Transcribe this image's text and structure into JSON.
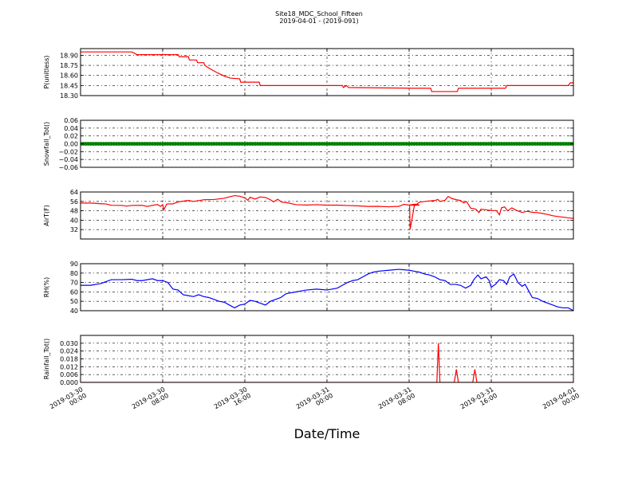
{
  "chart_data": {
    "type": "line",
    "title": "Site18_MDC_School_Fifteen",
    "subtitle": "2019-04-01 - (2019-091)",
    "xlabel": "Date/Time",
    "x_range": [
      "2019-03-30 00:00",
      "2019-04-01 00:00"
    ],
    "x_ticks": [
      {
        "t": 0,
        "line1": "2019-03-30",
        "line2": "00:00"
      },
      {
        "t": 8,
        "line1": "2019-03-30",
        "line2": "08:00"
      },
      {
        "t": 16,
        "line1": "2019-03-30",
        "line2": "16:00"
      },
      {
        "t": 24,
        "line1": "2019-03-31",
        "line2": "00:00"
      },
      {
        "t": 32,
        "line1": "2019-03-31",
        "line2": "08:00"
      },
      {
        "t": 40,
        "line1": "2019-03-31",
        "line2": "16:00"
      },
      {
        "t": 48,
        "line1": "2019-04-01",
        "line2": "00:00"
      }
    ],
    "grid": true,
    "panels": [
      {
        "ylabel": "P(unitless)",
        "ylim": [
          18.3,
          19.0
        ],
        "yticks": [
          "18.30",
          "18.45",
          "18.60",
          "18.75",
          "18.90"
        ],
        "ytick_values": [
          18.3,
          18.45,
          18.6,
          18.75,
          18.9
        ],
        "color": "#ff0000",
        "style": "line",
        "series": [
          [
            0,
            18.95
          ],
          [
            5,
            18.95
          ],
          [
            5.5,
            18.91
          ],
          [
            9.5,
            18.91
          ],
          [
            9.6,
            18.88
          ],
          [
            10.5,
            18.88
          ],
          [
            10.6,
            18.83
          ],
          [
            11.3,
            18.83
          ],
          [
            11.4,
            18.79
          ],
          [
            12,
            18.79
          ],
          [
            12.1,
            18.75
          ],
          [
            12.6,
            18.7
          ],
          [
            13.2,
            18.65
          ],
          [
            13.6,
            18.62
          ],
          [
            14,
            18.59
          ],
          [
            14.6,
            18.56
          ],
          [
            15.5,
            18.55
          ],
          [
            15.6,
            18.5
          ],
          [
            17.4,
            18.5
          ],
          [
            17.5,
            18.45
          ],
          [
            25,
            18.45
          ],
          [
            25.5,
            18.45
          ],
          [
            25.6,
            18.42
          ],
          [
            25.9,
            18.45
          ],
          [
            26.1,
            18.42
          ],
          [
            32.5,
            18.41
          ],
          [
            34.1,
            18.41
          ],
          [
            34.2,
            18.36
          ],
          [
            36.7,
            18.36
          ],
          [
            36.8,
            18.41
          ],
          [
            41.4,
            18.41
          ],
          [
            41.5,
            18.45
          ],
          [
            47.5,
            18.45
          ],
          [
            47.7,
            18.49
          ],
          [
            48,
            18.49
          ]
        ]
      },
      {
        "ylabel": "Snowfall_Tot()",
        "ylim": [
          -0.06,
          0.06
        ],
        "yticks": [
          "−0.06",
          "−0.04",
          "−0.02",
          "0.00",
          "0.02",
          "0.04",
          "0.06"
        ],
        "ytick_values": [
          -0.06,
          -0.04,
          -0.02,
          0.0,
          0.02,
          0.04,
          0.06
        ],
        "color": "#007f00",
        "style": "markers",
        "series": [
          [
            0,
            0
          ],
          [
            48,
            0
          ]
        ]
      },
      {
        "ylabel": "AirT(F)",
        "ylim": [
          24,
          64
        ],
        "yticks": [
          "32",
          "40",
          "48",
          "56",
          "64"
        ],
        "ytick_values": [
          32,
          40,
          48,
          56,
          64
        ],
        "color": "#ff0000",
        "style": "line",
        "series": [
          [
            0,
            54.6
          ],
          [
            1,
            54.6
          ],
          [
            2,
            54.0
          ],
          [
            2.5,
            53.8
          ],
          [
            3,
            52.7
          ],
          [
            4,
            52.6
          ],
          [
            4.5,
            52.0
          ],
          [
            5,
            52.6
          ],
          [
            6,
            52.7
          ],
          [
            6.5,
            51.7
          ],
          [
            7,
            52.7
          ],
          [
            7.5,
            53.3
          ],
          [
            7.8,
            51.7
          ],
          [
            8,
            53.3
          ],
          [
            8.1,
            48.8
          ],
          [
            8.4,
            53.8
          ],
          [
            9,
            53.9
          ],
          [
            9.5,
            55.6
          ],
          [
            10,
            56.2
          ],
          [
            10.5,
            56.8
          ],
          [
            11,
            56.0
          ],
          [
            12,
            57.4
          ],
          [
            13,
            57.6
          ],
          [
            14,
            58.7
          ],
          [
            14.5,
            59.9
          ],
          [
            15,
            60.9
          ],
          [
            15.5,
            60.4
          ],
          [
            16,
            59.0
          ],
          [
            16.3,
            57.0
          ],
          [
            16.5,
            59.5
          ],
          [
            17,
            58.0
          ],
          [
            17.5,
            59.8
          ],
          [
            18,
            59.4
          ],
          [
            18.5,
            57.4
          ],
          [
            18.8,
            55.6
          ],
          [
            19.2,
            57.8
          ],
          [
            19.6,
            55.3
          ],
          [
            20,
            55.1
          ],
          [
            21,
            53.2
          ],
          [
            22,
            52.9
          ],
          [
            23,
            53.2
          ],
          [
            24,
            52.8
          ],
          [
            25,
            52.8
          ],
          [
            26,
            52.5
          ],
          [
            27,
            52.2
          ],
          [
            28,
            51.7
          ],
          [
            29,
            51.8
          ],
          [
            30,
            51.4
          ],
          [
            31,
            51.8
          ],
          [
            31.5,
            53.5
          ],
          [
            32,
            52.8
          ],
          [
            32.5,
            53.6
          ],
          [
            32.8,
            53.5
          ],
          [
            33,
            52.8
          ],
          [
            32.05,
            52.8
          ],
          [
            32.1,
            32.2
          ],
          [
            32.5,
            52.0
          ],
          [
            33,
            55.3
          ],
          [
            33.5,
            55.9
          ],
          [
            34,
            56.4
          ],
          [
            34.5,
            56.7
          ],
          [
            34.8,
            57.7
          ],
          [
            35,
            55.9
          ],
          [
            35.5,
            57.0
          ],
          [
            35.8,
            60.2
          ],
          [
            36.2,
            58.4
          ],
          [
            36.6,
            57.4
          ],
          [
            37,
            56.8
          ],
          [
            37.3,
            54.8
          ],
          [
            37.6,
            55.8
          ],
          [
            38,
            50.2
          ],
          [
            38.5,
            49.4
          ],
          [
            38.8,
            46.5
          ],
          [
            39,
            49.4
          ],
          [
            39.5,
            48.8
          ],
          [
            40,
            48.2
          ],
          [
            40.5,
            48.2
          ],
          [
            40.8,
            44.6
          ],
          [
            41,
            50.6
          ],
          [
            41.3,
            51.3
          ],
          [
            41.6,
            48.0
          ],
          [
            42,
            50.5
          ],
          [
            42.5,
            48.2
          ],
          [
            43,
            46.6
          ],
          [
            43.5,
            47.6
          ],
          [
            44,
            46.7
          ],
          [
            44.5,
            46.5
          ],
          [
            45,
            45.7
          ],
          [
            45.5,
            44.9
          ],
          [
            46,
            43.8
          ],
          [
            46.5,
            43.1
          ],
          [
            47,
            42.6
          ],
          [
            47.5,
            42.0
          ],
          [
            48,
            41.5
          ]
        ]
      },
      {
        "ylabel": "RH(%)",
        "ylim": [
          40,
          90
        ],
        "yticks": [
          "40",
          "50",
          "60",
          "70",
          "80",
          "90"
        ],
        "ytick_values": [
          40,
          50,
          60,
          70,
          80,
          90
        ],
        "color": "#0000ff",
        "style": "line",
        "series": [
          [
            0,
            67
          ],
          [
            1,
            67
          ],
          [
            2,
            69
          ],
          [
            2.5,
            71
          ],
          [
            3,
            73
          ],
          [
            4,
            73
          ],
          [
            5,
            73.5
          ],
          [
            5.5,
            72
          ],
          [
            6,
            72
          ],
          [
            7,
            74
          ],
          [
            7.5,
            72
          ],
          [
            8,
            72
          ],
          [
            8.5,
            70
          ],
          [
            9,
            63
          ],
          [
            9.5,
            62
          ],
          [
            10,
            57
          ],
          [
            10.5,
            56
          ],
          [
            11,
            55
          ],
          [
            11.5,
            57
          ],
          [
            12,
            55
          ],
          [
            12.5,
            54
          ],
          [
            13,
            52
          ],
          [
            13.5,
            50
          ],
          [
            14,
            49
          ],
          [
            14.5,
            46
          ],
          [
            15,
            43
          ],
          [
            15.5,
            46
          ],
          [
            16,
            47
          ],
          [
            16.5,
            51
          ],
          [
            17,
            50
          ],
          [
            17.5,
            48
          ],
          [
            18,
            46
          ],
          [
            18.5,
            50
          ],
          [
            19,
            52
          ],
          [
            19.5,
            54
          ],
          [
            20,
            58
          ],
          [
            20.5,
            59
          ],
          [
            21,
            60
          ],
          [
            21.5,
            61
          ],
          [
            22,
            62
          ],
          [
            23,
            63
          ],
          [
            24,
            62
          ],
          [
            25,
            64
          ],
          [
            25.5,
            67
          ],
          [
            26,
            70
          ],
          [
            26.5,
            72
          ],
          [
            27,
            73
          ],
          [
            27.5,
            76
          ],
          [
            28,
            79
          ],
          [
            28.5,
            81
          ],
          [
            29,
            82
          ],
          [
            30,
            83
          ],
          [
            31,
            84
          ],
          [
            32,
            83
          ],
          [
            32.5,
            82
          ],
          [
            33,
            81
          ],
          [
            33.5,
            79
          ],
          [
            34,
            78
          ],
          [
            34.5,
            76
          ],
          [
            35,
            73
          ],
          [
            35.5,
            72
          ],
          [
            36,
            68
          ],
          [
            36.5,
            68
          ],
          [
            37,
            67
          ],
          [
            37.5,
            64
          ],
          [
            38,
            67
          ],
          [
            38.3,
            73
          ],
          [
            38.7,
            78
          ],
          [
            39,
            74
          ],
          [
            39.5,
            76
          ],
          [
            39.8,
            72
          ],
          [
            40,
            65
          ],
          [
            40.4,
            68
          ],
          [
            40.8,
            73
          ],
          [
            41.2,
            72
          ],
          [
            41.5,
            68
          ],
          [
            41.8,
            76
          ],
          [
            42.2,
            79
          ],
          [
            42.6,
            70
          ],
          [
            43,
            66
          ],
          [
            43.3,
            68
          ],
          [
            43.6,
            62
          ],
          [
            44,
            54
          ],
          [
            44.5,
            53
          ],
          [
            45,
            50
          ],
          [
            45.5,
            48
          ],
          [
            46,
            46
          ],
          [
            46.5,
            44
          ],
          [
            47,
            43
          ],
          [
            47.5,
            43
          ],
          [
            48,
            40
          ]
        ]
      },
      {
        "ylabel": "Rainfall_Tot()",
        "ylim": [
          0,
          0.036
        ],
        "yticks": [
          "0.000",
          "0.006",
          "0.012",
          "0.018",
          "0.024",
          "0.030"
        ],
        "ytick_values": [
          0,
          0.006,
          0.012,
          0.018,
          0.024,
          0.03
        ],
        "color": "#ff0000",
        "style": "line",
        "series": [
          [
            0,
            0
          ],
          [
            34.7,
            0
          ],
          [
            34.85,
            0.03
          ],
          [
            35.0,
            0
          ],
          [
            36.4,
            0
          ],
          [
            36.6,
            0.01
          ],
          [
            36.8,
            0
          ],
          [
            38.2,
            0
          ],
          [
            38.4,
            0.01
          ],
          [
            38.6,
            0
          ],
          [
            48,
            0
          ]
        ]
      }
    ]
  }
}
